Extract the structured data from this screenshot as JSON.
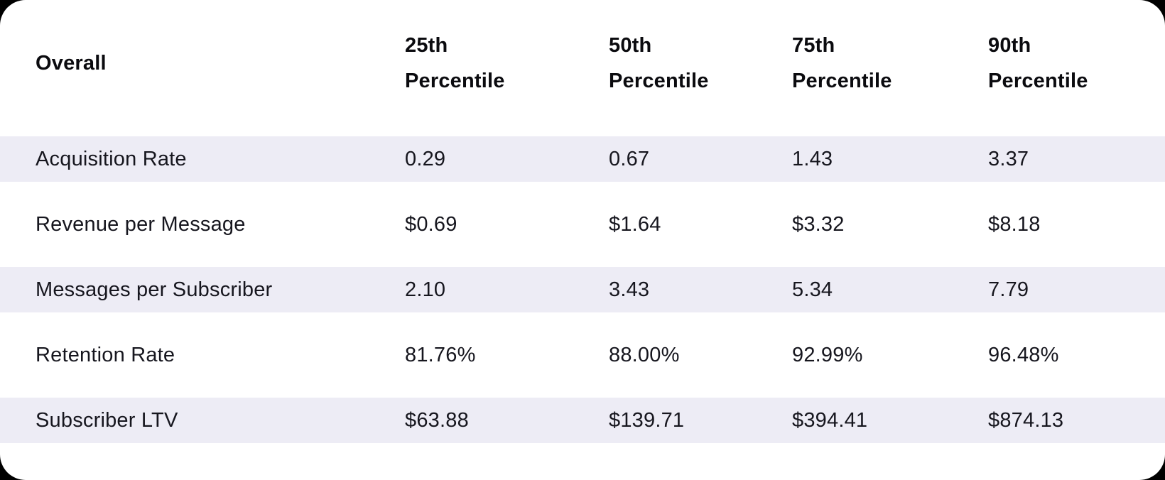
{
  "page": {
    "background_color": "#000000",
    "card_background": "#ffffff",
    "stripe_color": "#edecf5",
    "header_text_color": "#0b0b0f",
    "body_text_color": "#16161e"
  },
  "chart_data": {
    "type": "table",
    "title": "Overall",
    "columns": [
      "Overall",
      "25th Percentile",
      "50th Percentile",
      "75th Percentile",
      "90th Percentile"
    ],
    "rows": [
      [
        "Acquisition Rate",
        "0.29",
        "0.67",
        "1.43",
        "3.37"
      ],
      [
        "Revenue per Message",
        "$0.69",
        "$1.64",
        "$3.32",
        "$8.18"
      ],
      [
        "Messages per Subscriber",
        "2.10",
        "3.43",
        "5.34",
        "7.79"
      ],
      [
        "Retention Rate",
        "81.76%",
        "88.00%",
        "92.99%",
        "96.48%"
      ],
      [
        "Subscriber LTV",
        "$63.88",
        "$139.71",
        "$394.41",
        "$874.13"
      ]
    ],
    "layout": {
      "striped_rows": "odd rows shaded lavender",
      "grid": "off",
      "header_position": "top"
    }
  }
}
